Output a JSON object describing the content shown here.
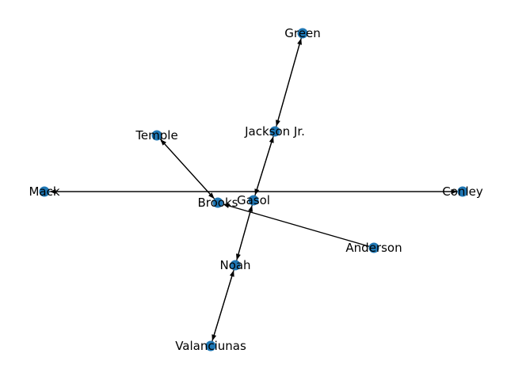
{
  "graph": {
    "node_color": "#1f77b4",
    "edge_color": "#000000",
    "nodes": [
      {
        "id": "green",
        "label": "Green"
      },
      {
        "id": "jackson",
        "label": "Jackson Jr."
      },
      {
        "id": "temple",
        "label": "Temple"
      },
      {
        "id": "mack",
        "label": "Mack"
      },
      {
        "id": "conley",
        "label": "Conley"
      },
      {
        "id": "brooks",
        "label": "Brooks"
      },
      {
        "id": "gasol",
        "label": "Gasol"
      },
      {
        "id": "anderson",
        "label": "Anderson"
      },
      {
        "id": "noah",
        "label": "Noah"
      },
      {
        "id": "valanciunas",
        "label": "Valanciunas"
      }
    ],
    "edges": [
      {
        "from": "green",
        "to": "jackson"
      },
      {
        "from": "jackson",
        "to": "green"
      },
      {
        "from": "jackson",
        "to": "gasol"
      },
      {
        "from": "gasol",
        "to": "jackson"
      },
      {
        "from": "temple",
        "to": "brooks"
      },
      {
        "from": "brooks",
        "to": "temple"
      },
      {
        "from": "conley",
        "to": "mack"
      },
      {
        "from": "mack",
        "to": "conley"
      },
      {
        "from": "anderson",
        "to": "brooks"
      },
      {
        "from": "gasol",
        "to": "noah"
      },
      {
        "from": "noah",
        "to": "gasol"
      },
      {
        "from": "noah",
        "to": "valanciunas"
      },
      {
        "from": "valanciunas",
        "to": "noah"
      }
    ]
  }
}
